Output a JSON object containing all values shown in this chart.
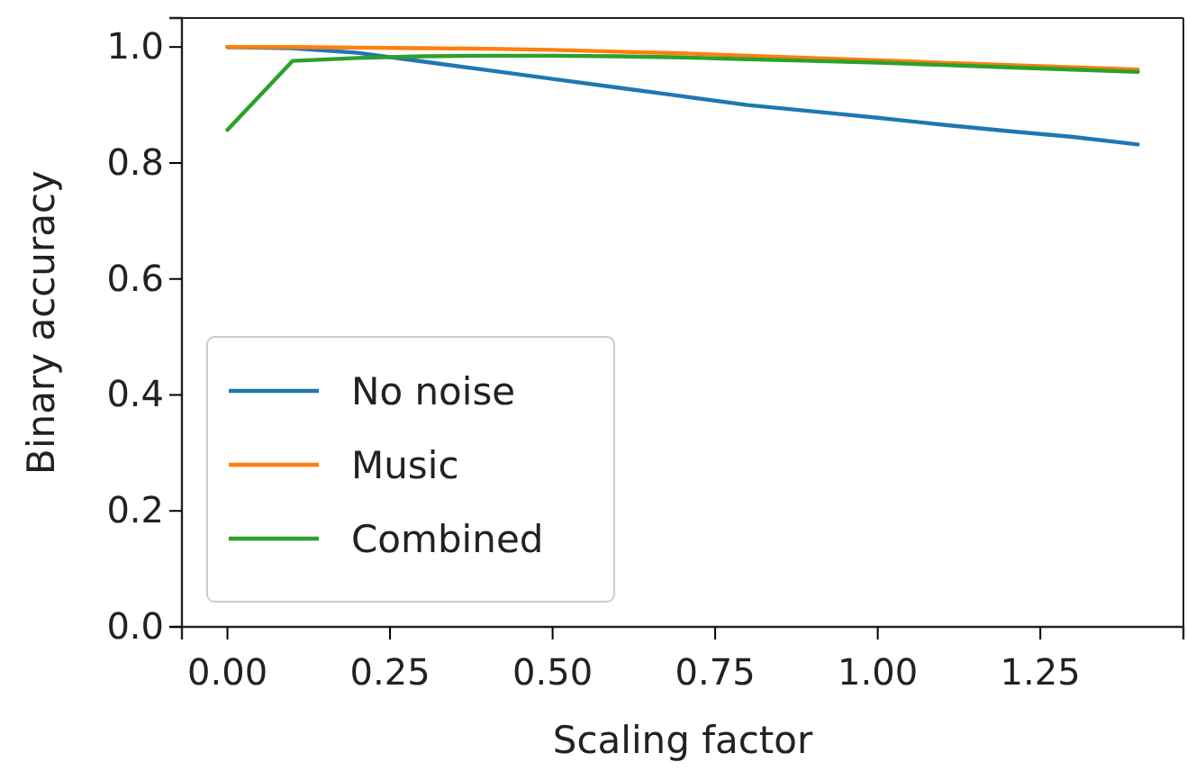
{
  "chart_data": {
    "type": "line",
    "xlabel": "Scaling factor",
    "ylabel": "Binary accuracy",
    "x": [
      0,
      0.1,
      0.2,
      0.3,
      0.4,
      0.5,
      0.6,
      0.7,
      0.8,
      0.9,
      1.0,
      1.1,
      1.2,
      1.3,
      1.4
    ],
    "series": [
      {
        "name": "No noise",
        "color": "#1f77b4",
        "values": [
          1.0,
          0.998,
          0.99,
          0.975,
          0.96,
          0.945,
          0.93,
          0.915,
          0.9,
          0.889,
          0.878,
          0.866,
          0.855,
          0.845,
          0.832
        ]
      },
      {
        "name": "Music",
        "color": "#ff7f0e",
        "values": [
          1.0,
          1.0,
          0.999,
          0.998,
          0.997,
          0.995,
          0.992,
          0.989,
          0.985,
          0.981,
          0.977,
          0.973,
          0.969,
          0.965,
          0.961
        ]
      },
      {
        "name": "Combined",
        "color": "#2ca02c",
        "values": [
          0.857,
          0.976,
          0.981,
          0.984,
          0.985,
          0.985,
          0.984,
          0.982,
          0.979,
          0.976,
          0.973,
          0.969,
          0.965,
          0.961,
          0.957
        ]
      }
    ],
    "xlim": [
      -0.07,
      1.47
    ],
    "ylim": [
      0,
      1.05
    ],
    "xticks": [
      {
        "value": 0,
        "label": "0.00"
      },
      {
        "value": 0.25,
        "label": "0.25"
      },
      {
        "value": 0.5,
        "label": "0.50"
      },
      {
        "value": 0.75,
        "label": "0.75"
      },
      {
        "value": 1,
        "label": "1.00"
      },
      {
        "value": 1.25,
        "label": "1.25"
      }
    ],
    "yticks": [
      {
        "value": 0,
        "label": "0.0"
      },
      {
        "value": 0.2,
        "label": "0.2"
      },
      {
        "value": 0.4,
        "label": "0.4"
      },
      {
        "value": 0.6,
        "label": "0.6"
      },
      {
        "value": 0.8,
        "label": "0.8"
      },
      {
        "value": 1,
        "label": "1.0"
      }
    ],
    "legend": "bottom left",
    "grid": false,
    "marker": "none",
    "line_style": "solid"
  }
}
